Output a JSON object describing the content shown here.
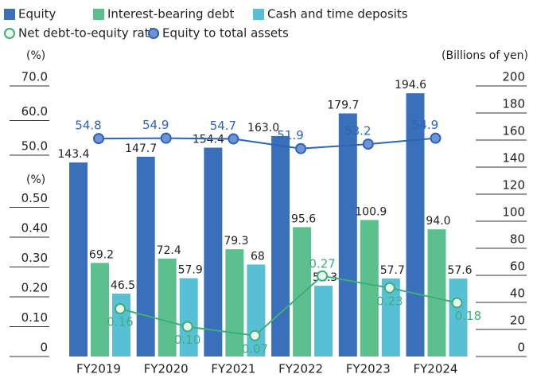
{
  "chart_data": {
    "type": "bar",
    "categories": [
      "FY2019",
      "FY2020",
      "FY2021",
      "FY2022",
      "FY2023",
      "FY2024"
    ],
    "y_label": "(Billions of yen)",
    "ylim": [
      0,
      200
    ],
    "yticks": [
      0,
      20,
      40,
      60,
      80,
      100,
      120,
      140,
      160,
      180,
      200
    ],
    "y2_label": "(%)",
    "y2lim": [
      50,
      70
    ],
    "y2ticks": [
      {
        "value": 50,
        "label": "50.0"
      },
      {
        "value": 60,
        "label": "60.0"
      },
      {
        "value": 70,
        "label": "70.0"
      }
    ],
    "y3_label": "(%)",
    "y3lim": [
      0,
      0.5
    ],
    "y3ticks": [
      0,
      {
        "value": 0.1,
        "label": "0.10"
      },
      {
        "value": 0.2,
        "label": "0.20"
      },
      {
        "value": 0.3,
        "label": "0.30"
      },
      {
        "value": 0.4,
        "label": "0.40"
      },
      {
        "value": 0.5,
        "label": "0.50"
      }
    ],
    "series": [
      {
        "name": "Equity",
        "type": "bar",
        "color": "#3a6fba",
        "values": [
          143.4,
          147.7,
          154.4,
          163,
          179.7,
          194.6
        ],
        "value_labels": [
          "143.4",
          "147.7",
          "154.4",
          "163.0",
          "179.7",
          "194.6"
        ]
      },
      {
        "name": "Interest-bearing debt",
        "type": "bar",
        "color": "#5cc08e",
        "values": [
          69.2,
          72.4,
          79.3,
          95.6,
          100.9,
          94
        ],
        "value_labels": [
          "69.2",
          "72.4",
          "79.3",
          "95.6",
          "100.9",
          "94.0"
        ]
      },
      {
        "name": "Cash and time deposits",
        "type": "bar",
        "color": "#58c0d4",
        "values": [
          46.5,
          57.9,
          68,
          52.3,
          57.7,
          57.6
        ]
      },
      {
        "name": "Net debt-to-equity ratio",
        "type": "line",
        "axis": "y3",
        "color": "#3fae7b",
        "values": [
          0.16,
          0.1,
          0.07,
          0.27,
          0.23,
          0.18
        ],
        "value_labels": [
          "0.16",
          "0.10",
          "0.07",
          "0.27",
          "0.23",
          "0.18"
        ]
      },
      {
        "name": "Equity to total assets",
        "type": "line",
        "axis": "y2",
        "color": "#2f64b5",
        "values": [
          54.8,
          54.9,
          54.7,
          51.9,
          53.2,
          54.9
        ]
      }
    ]
  }
}
